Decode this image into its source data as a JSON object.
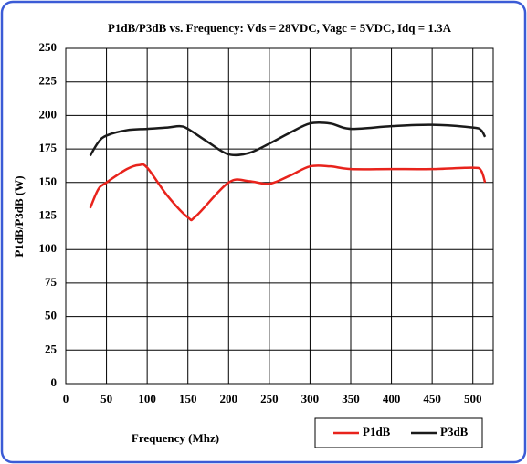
{
  "chart_data": {
    "type": "line",
    "title": "P1dB/P3dB vs. Frequency: Vds = 28VDC, Vagc = 5VDC, Idq = 1.3A",
    "x_label": "Frequency (Mhz)",
    "y_label": "P1dB/P3dB (W)",
    "series": [
      {
        "name": "P1dB",
        "color": "#e8231c",
        "x": [
          30,
          40,
          50,
          75,
          90,
          100,
          125,
          150,
          160,
          200,
          225,
          250,
          275,
          300,
          325,
          350,
          400,
          450,
          500,
          510,
          515
        ],
        "values": [
          131,
          145,
          150,
          160,
          163,
          161,
          140,
          124,
          125,
          150,
          151,
          149,
          155,
          162,
          162,
          160,
          160,
          160,
          161,
          159,
          150
        ]
      },
      {
        "name": "P3dB",
        "color": "#1a1a1a",
        "x": [
          30,
          40,
          50,
          75,
          100,
          125,
          140,
          150,
          175,
          200,
          225,
          250,
          275,
          300,
          325,
          350,
          400,
          450,
          500,
          510,
          515
        ],
        "values": [
          170,
          180,
          185,
          189,
          190,
          191,
          192,
          190,
          180,
          171,
          172,
          179,
          187,
          194,
          194,
          190,
          192,
          193,
          191,
          189,
          184
        ]
      }
    ],
    "xlim": [
      0,
      525
    ],
    "xticks": [
      0,
      50,
      100,
      150,
      200,
      250,
      300,
      350,
      400,
      450,
      500
    ],
    "ylim": [
      0,
      250
    ],
    "yticks": [
      0,
      25,
      50,
      75,
      100,
      125,
      150,
      175,
      200,
      225,
      250
    ],
    "grid": true,
    "legend": "bottom-right"
  }
}
